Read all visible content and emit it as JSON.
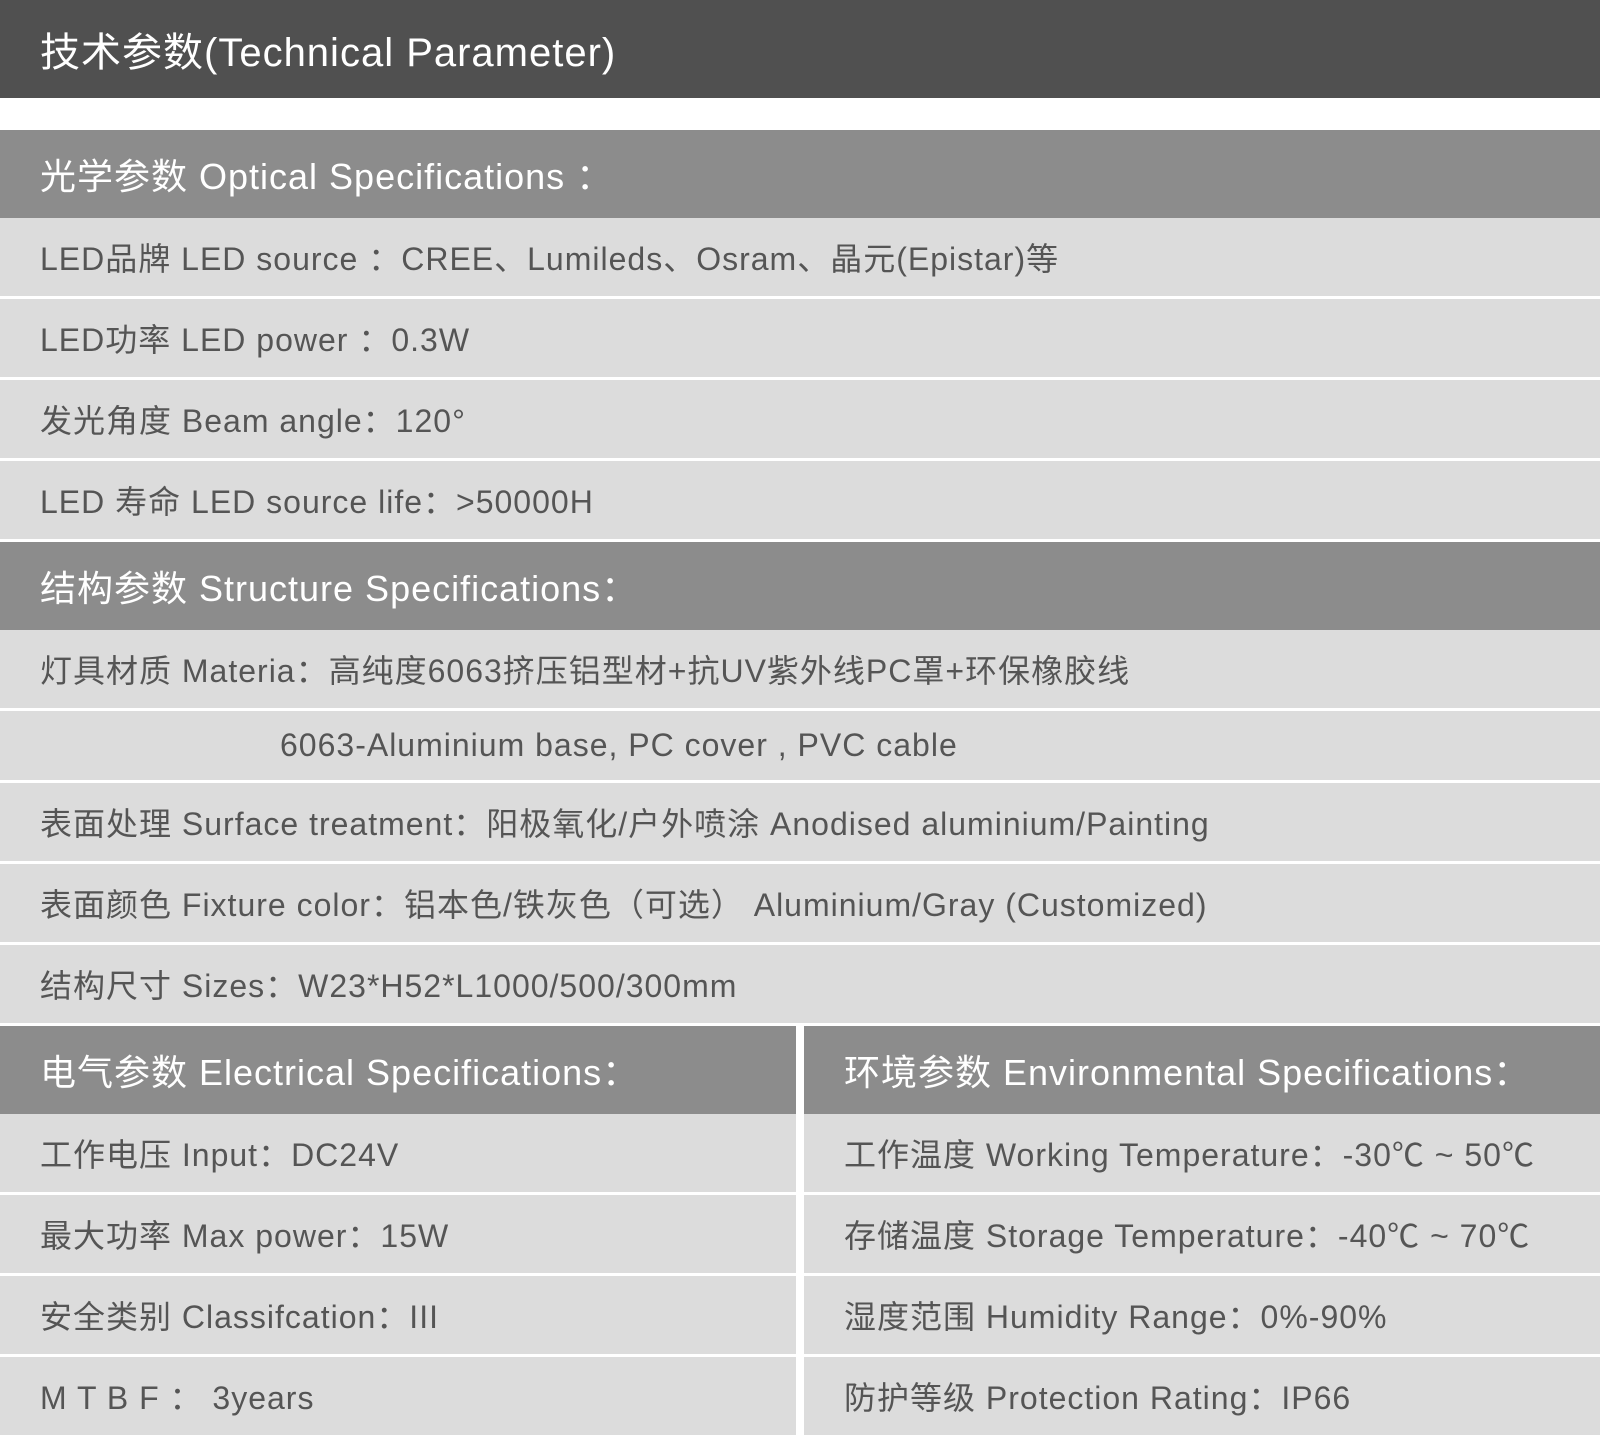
{
  "colors": {
    "main_header_bg": "#505050",
    "section_header_bg": "#8c8c8c",
    "row_bg": "#dcdcdc",
    "header_text": "#ffffff",
    "row_text": "#555555",
    "gap_bg": "#ffffff"
  },
  "typography": {
    "main_header_fontsize": 40,
    "section_header_fontsize": 36,
    "row_fontsize": 32,
    "font_family": "Microsoft YaHei"
  },
  "main_header": "技术参数(Technical Parameter)",
  "sections": {
    "optical": {
      "header": "光学参数 Optical Specifications ：",
      "rows": [
        "LED品牌 LED source ：CREE、Lumileds、Osram、晶元(Epistar)等",
        "LED功率 LED power ：0.3W",
        "发光角度 Beam angle：120°",
        "LED 寿命 LED source life：>50000H"
      ]
    },
    "structure": {
      "header": "结构参数 Structure Specifications：",
      "rows": [
        "灯具材质 Materia：高纯度6063挤压铝型材+抗UV紫外线PC罩+环保橡胶线",
        "6063-Aluminium base, PC cover , PVC cable",
        "表面处理 Surface treatment：阳极氧化/户外喷涂 Anodised aluminium/Painting",
        "表面颜色 Fixture color：铝本色/铁灰色（可选） Aluminium/Gray (Customized)",
        "结构尺寸 Sizes：W23*H52*L1000/500/300mm"
      ]
    },
    "electrical": {
      "header": "电气参数 Electrical Specifications：",
      "rows": [
        "工作电压 Input：DC24V",
        "最大功率 Max power：15W",
        "安全类别 Classifcation：III",
        "M T B F ： 3years"
      ]
    },
    "environmental": {
      "header": "环境参数 Environmental Specifications：",
      "rows": [
        "工作温度 Working Temperature：-30℃ ~ 50℃",
        "存储温度 Storage Temperature：-40℃ ~ 70℃",
        "湿度范围 Humidity Range：0%-90%",
        "防护等级 Protection Rating：IP66"
      ]
    }
  }
}
